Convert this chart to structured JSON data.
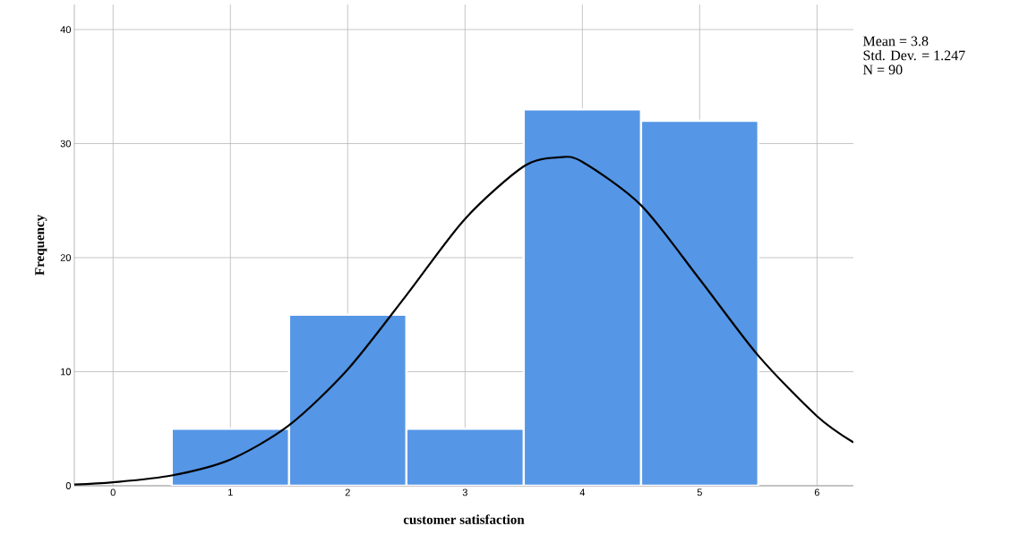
{
  "chart_data": {
    "type": "histogram",
    "xlabel": "customer satisfaction",
    "ylabel": "Frequency",
    "bins": [
      0.5,
      1.5,
      2.5,
      3.5,
      4.5,
      5.5
    ],
    "values": [
      5,
      15,
      5,
      33,
      32
    ],
    "color": "#5596e6",
    "series": [
      {
        "type": "line",
        "color": "#000000",
        "x": [
          -0.33,
          0,
          0.5,
          1,
          1.5,
          2,
          2.5,
          3,
          3.5,
          3.8,
          4,
          4.5,
          5,
          5.5,
          6,
          6.31
        ],
        "values": [
          0.1,
          0.3,
          0.9,
          2.3,
          5.3,
          10.2,
          16.7,
          23.4,
          28.0,
          28.8,
          28.4,
          24.6,
          18.1,
          11.4,
          6.1,
          3.8
        ]
      }
    ],
    "xlim": [
      -0.33,
      6.31
    ],
    "ylim": [
      0,
      42.2
    ],
    "xticks": [
      0,
      1,
      2,
      3,
      4,
      5,
      6
    ],
    "yticks": [
      0,
      10,
      20,
      30,
      40
    ],
    "grid": true,
    "annotations": [
      "Mean = 3.8",
      "Std. Dev. = 1.247",
      "N = 90"
    ]
  }
}
